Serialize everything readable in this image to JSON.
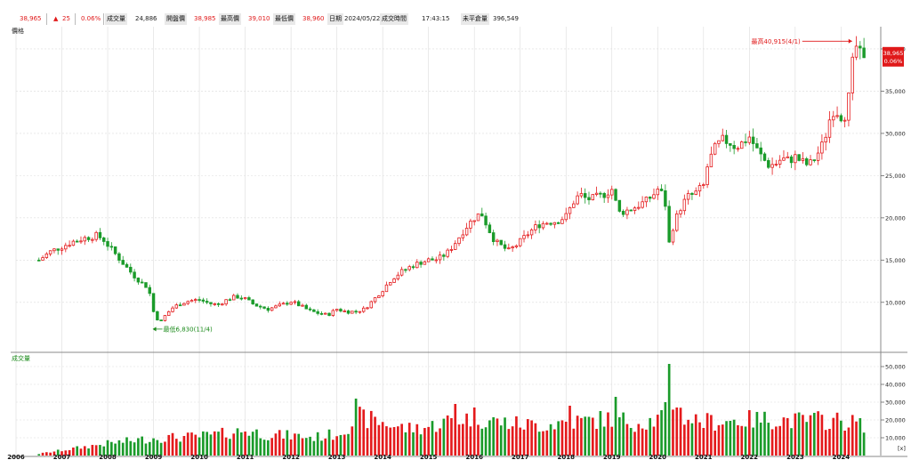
{
  "header": {
    "last_price": "38,965",
    "change_arrow": "▲",
    "change": "25",
    "change_pct": "0.06%",
    "volume_label": "成交量",
    "volume": "24,886",
    "open_label": "開盤價",
    "open": "38,985",
    "high_label": "最高價",
    "high": "39,010",
    "low_label": "最低價",
    "low": "38,960",
    "date_label": "日期",
    "date": "2024/05/22",
    "time_label": "成交時間",
    "time": "17:43:15",
    "oi_label": "未平倉量",
    "oi": "396,549"
  },
  "colors": {
    "up": "#e41a1c",
    "down": "#1a9b2a",
    "grid": "#dcdcdc",
    "text": "#222222",
    "accent_red": "#e0191a",
    "accent_green": "#1a8a1a"
  },
  "chart_data": {
    "type": "candlestick",
    "price_panel_title": "價格",
    "volume_panel_title": "成交量",
    "volume_unit": "[x]",
    "price_ticks": [
      "10,000",
      "15,000",
      "20,000",
      "25,000",
      "30,000",
      "35,000",
      "40,000"
    ],
    "price_tick_values": [
      10000,
      15000,
      20000,
      25000,
      30000,
      35000,
      40000
    ],
    "price_range": [
      4500,
      42000
    ],
    "volume_ticks": [
      "10,000",
      "20,000",
      "30,000",
      "40,000",
      "50,000"
    ],
    "volume_tick_values": [
      10000,
      20000,
      30000,
      40000,
      50000
    ],
    "volume_range": [
      0,
      56000
    ],
    "years": [
      "2006",
      "2007",
      "2008",
      "2009",
      "2010",
      "2011",
      "2012",
      "2013",
      "2014",
      "2015",
      "2016",
      "2017",
      "2018",
      "2019",
      "2020",
      "2021",
      "2022",
      "2023",
      "2024"
    ],
    "year_start": 2006.5,
    "year_end": 2024.5,
    "high_annotation": "最高40,915(4/1)",
    "low_annotation": "最低6,830(11/4)",
    "last_price": "38,965",
    "last_change_pct": "0.06%",
    "close_path": [
      [
        2006.5,
        15000
      ],
      [
        2006.75,
        16000
      ],
      [
        2007.0,
        16600
      ],
      [
        2007.25,
        17200
      ],
      [
        2007.5,
        17600
      ],
      [
        2007.75,
        17900
      ],
      [
        2007.9,
        17500
      ],
      [
        2008.0,
        16800
      ],
      [
        2008.2,
        15500
      ],
      [
        2008.4,
        14200
      ],
      [
        2008.6,
        13000
      ],
      [
        2008.8,
        12000
      ],
      [
        2008.9,
        11800
      ],
      [
        2008.95,
        9500
      ],
      [
        2009.05,
        8300
      ],
      [
        2009.15,
        7600
      ],
      [
        2009.25,
        8400
      ],
      [
        2009.4,
        9300
      ],
      [
        2009.6,
        9900
      ],
      [
        2009.8,
        10200
      ],
      [
        2010.0,
        10300
      ],
      [
        2010.2,
        9900
      ],
      [
        2010.4,
        9700
      ],
      [
        2010.6,
        10300
      ],
      [
        2010.8,
        10700
      ],
      [
        2011.0,
        10400
      ],
      [
        2011.2,
        9700
      ],
      [
        2011.5,
        9200
      ],
      [
        2011.8,
        9700
      ],
      [
        2012.0,
        10100
      ],
      [
        2012.2,
        9600
      ],
      [
        2012.4,
        9000
      ],
      [
        2012.6,
        8700
      ],
      [
        2012.8,
        8500
      ],
      [
        2013.0,
        9200
      ],
      [
        2013.2,
        8900
      ],
      [
        2013.4,
        8900
      ],
      [
        2013.6,
        9200
      ],
      [
        2013.8,
        10300
      ],
      [
        2014.0,
        11500
      ],
      [
        2014.2,
        12800
      ],
      [
        2014.4,
        13600
      ],
      [
        2014.6,
        14200
      ],
      [
        2014.8,
        14700
      ],
      [
        2015.0,
        15000
      ],
      [
        2015.2,
        15100
      ],
      [
        2015.4,
        15800
      ],
      [
        2015.6,
        17200
      ],
      [
        2015.8,
        18800
      ],
      [
        2016.0,
        20000
      ],
      [
        2016.15,
        20600
      ],
      [
        2016.3,
        18800
      ],
      [
        2016.45,
        17200
      ],
      [
        2016.6,
        16600
      ],
      [
        2016.75,
        16100
      ],
      [
        2016.9,
        16700
      ],
      [
        2017.0,
        17200
      ],
      [
        2017.2,
        18300
      ],
      [
        2017.4,
        19200
      ],
      [
        2017.6,
        19500
      ],
      [
        2017.8,
        19600
      ],
      [
        2018.0,
        20200
      ],
      [
        2018.15,
        21800
      ],
      [
        2018.3,
        22800
      ],
      [
        2018.45,
        22200
      ],
      [
        2018.6,
        22300
      ],
      [
        2018.8,
        22700
      ],
      [
        2019.0,
        23400
      ],
      [
        2019.15,
        20600
      ],
      [
        2019.35,
        20900
      ],
      [
        2019.55,
        21400
      ],
      [
        2019.75,
        22000
      ],
      [
        2019.9,
        22700
      ],
      [
        2020.0,
        23400
      ],
      [
        2020.15,
        22500
      ],
      [
        2020.25,
        17000
      ],
      [
        2020.35,
        19300
      ],
      [
        2020.5,
        21200
      ],
      [
        2020.65,
        22500
      ],
      [
        2020.8,
        22800
      ],
      [
        2021.0,
        23800
      ],
      [
        2021.1,
        26500
      ],
      [
        2021.25,
        28200
      ],
      [
        2021.4,
        29200
      ],
      [
        2021.55,
        29000
      ],
      [
        2021.7,
        28400
      ],
      [
        2021.85,
        28900
      ],
      [
        2022.0,
        29600
      ],
      [
        2022.2,
        27700
      ],
      [
        2022.4,
        26300
      ],
      [
        2022.55,
        26300
      ],
      [
        2022.7,
        27000
      ],
      [
        2022.85,
        26800
      ],
      [
        2023.0,
        27200
      ],
      [
        2023.15,
        26600
      ],
      [
        2023.3,
        26200
      ],
      [
        2023.45,
        27200
      ],
      [
        2023.6,
        28700
      ],
      [
        2023.7,
        30500
      ],
      [
        2023.8,
        32800
      ],
      [
        2023.95,
        32500
      ],
      [
        2024.05,
        31700
      ],
      [
        2024.15,
        33400
      ],
      [
        2024.25,
        38200
      ],
      [
        2024.33,
        40300
      ],
      [
        2024.42,
        39200
      ],
      [
        2024.5,
        38965
      ]
    ],
    "volume_pattern": [
      [
        2006.5,
        1000
      ],
      [
        2007.0,
        3000
      ],
      [
        2007.5,
        5000
      ],
      [
        2008.0,
        7000
      ],
      [
        2008.5,
        8500
      ],
      [
        2009.0,
        10000
      ],
      [
        2009.5,
        10500
      ],
      [
        2010.0,
        11000
      ],
      [
        2010.5,
        12500
      ],
      [
        2011.0,
        14500
      ],
      [
        2011.5,
        12000
      ],
      [
        2012.0,
        11500
      ],
      [
        2012.5,
        10500
      ],
      [
        2013.0,
        12500
      ],
      [
        2013.5,
        22000
      ],
      [
        2014.0,
        19000
      ],
      [
        2014.5,
        15500
      ],
      [
        2015.0,
        16500
      ],
      [
        2015.5,
        20500
      ],
      [
        2016.0,
        22000
      ],
      [
        2016.5,
        19500
      ],
      [
        2017.0,
        18000
      ],
      [
        2017.5,
        17500
      ],
      [
        2018.0,
        19500
      ],
      [
        2018.5,
        20000
      ],
      [
        2019.0,
        21500
      ],
      [
        2019.5,
        19000
      ],
      [
        2020.0,
        20500
      ],
      [
        2020.3,
        30000
      ],
      [
        2020.6,
        22000
      ],
      [
        2021.0,
        19500
      ],
      [
        2021.5,
        20000
      ],
      [
        2022.0,
        20500
      ],
      [
        2022.5,
        21000
      ],
      [
        2023.0,
        20000
      ],
      [
        2023.5,
        20500
      ],
      [
        2024.0,
        20000
      ],
      [
        2024.5,
        18000
      ]
    ],
    "volume_spikes": [
      [
        2013.45,
        32000
      ],
      [
        2015.58,
        29000
      ],
      [
        2016.0,
        27000
      ],
      [
        2018.05,
        28000
      ],
      [
        2019.05,
        33000
      ],
      [
        2020.27,
        51500
      ],
      [
        2020.4,
        27000
      ],
      [
        2020.19,
        30000
      ],
      [
        2024.38,
        21000
      ]
    ]
  }
}
